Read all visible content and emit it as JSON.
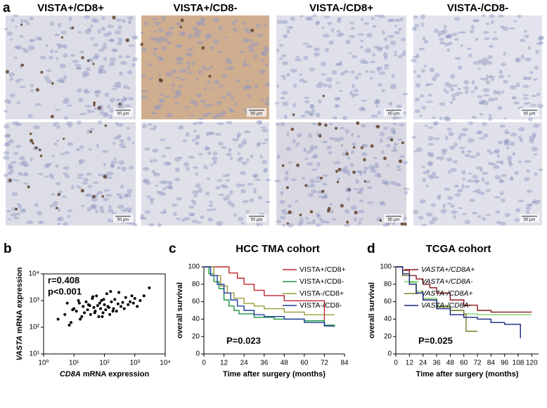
{
  "figure": {
    "label": "a",
    "columns": [
      "VISTA+/CD8+",
      "VISTA+/CD8-",
      "VISTA-/CD8+",
      "VISTA-/CD8-"
    ],
    "scale_bar": "50 μm"
  },
  "chart_data": [
    {
      "type": "scatter",
      "panel_label": "b",
      "xlabel": {
        "gene": "CD8A",
        "text": " mRNA expression"
      },
      "ylabel": {
        "gene": "VASTA",
        "text": " mRNA expression"
      },
      "annotations": [
        "r=0.408",
        "p<0.001"
      ],
      "log_x": true,
      "log_y": true,
      "color": "#000000",
      "xlim": [
        1,
        10000
      ],
      "ylim": [
        10,
        10000
      ],
      "xticks": [
        {
          "value": 1,
          "label": "10⁰"
        },
        {
          "value": 10,
          "label": "10¹"
        },
        {
          "value": 100,
          "label": "10²"
        },
        {
          "value": 1000,
          "label": "10³"
        },
        {
          "value": 10000,
          "label": "10⁴"
        }
      ],
      "yticks": [
        {
          "value": 10,
          "label": "10¹"
        },
        {
          "value": 100,
          "label": "10²"
        },
        {
          "value": 1000,
          "label": "10³"
        },
        {
          "value": 10000,
          "label": "10⁴"
        }
      ],
      "x": [
        3,
        5,
        8,
        10,
        12,
        15,
        18,
        20,
        22,
        25,
        28,
        30,
        35,
        40,
        45,
        50,
        55,
        60,
        65,
        70,
        75,
        80,
        90,
        100,
        110,
        120,
        130,
        150,
        170,
        200,
        220,
        250,
        280,
        300,
        350,
        400,
        450,
        500,
        600,
        700,
        800,
        900,
        1000,
        1200,
        1500,
        2000,
        3000,
        6,
        7,
        9,
        14,
        16,
        33,
        42,
        48,
        85,
        95,
        140,
        160,
        190
      ],
      "values": [
        200,
        300,
        150,
        500,
        400,
        800,
        250,
        600,
        350,
        900,
        450,
        700,
        300,
        1200,
        550,
        400,
        1500,
        650,
        250,
        800,
        500,
        1000,
        350,
        700,
        450,
        1800,
        600,
        300,
        900,
        500,
        1100,
        400,
        750,
        2000,
        600,
        850,
        500,
        1300,
        700,
        900,
        1500,
        800,
        1200,
        600,
        1000,
        1500,
        3000,
        800,
        120,
        450,
        1000,
        200,
        650,
        1400,
        350,
        250,
        1100,
        550,
        2200,
        400
      ]
    },
    {
      "type": "step",
      "panel_label": "c",
      "title": "HCC TMA cohort",
      "xlabel": "Time after surgery (months)",
      "ylabel": "overall survival",
      "annotations": [
        "P=0.023"
      ],
      "xlim": [
        0,
        84
      ],
      "ylim": [
        0,
        100
      ],
      "xticks": [
        0,
        12,
        24,
        36,
        48,
        60,
        72,
        84
      ],
      "yticks": [
        0,
        20,
        40,
        60,
        80,
        100
      ],
      "legend_italic": false,
      "series": [
        {
          "name": "VISTA+/CD8+",
          "color": "#c0272d",
          "x": [
            0,
            12,
            15,
            20,
            24,
            30,
            36,
            42,
            48,
            60,
            72,
            72,
            78
          ],
          "values": [
            100,
            100,
            93,
            87,
            80,
            73,
            67,
            67,
            61,
            61,
            61,
            32,
            32
          ]
        },
        {
          "name": "VISTA+/CD8-",
          "color": "#1a9641",
          "x": [
            0,
            3,
            6,
            9,
            12,
            15,
            18,
            21,
            24,
            30,
            36,
            42,
            48,
            60,
            72,
            78
          ],
          "values": [
            100,
            92,
            83,
            75,
            62,
            55,
            50,
            46,
            46,
            42,
            42,
            40,
            40,
            38,
            33,
            31
          ]
        },
        {
          "name": "VISTA-/CD8+",
          "color": "#9a9a3a",
          "x": [
            0,
            6,
            10,
            14,
            18,
            24,
            30,
            36,
            48,
            60,
            72,
            78
          ],
          "values": [
            100,
            90,
            78,
            70,
            64,
            58,
            55,
            52,
            48,
            45,
            45,
            45
          ]
        },
        {
          "name": "VISTA-/CD8-",
          "color": "#1f3fa0",
          "x": [
            0,
            4,
            8,
            12,
            16,
            20,
            24,
            30,
            36,
            48,
            60,
            72,
            78
          ],
          "values": [
            100,
            90,
            80,
            70,
            62,
            55,
            50,
            45,
            43,
            40,
            36,
            32,
            32
          ]
        }
      ]
    },
    {
      "type": "step",
      "panel_label": "d",
      "title": "TCGA cohort",
      "xlabel": "Time after surgery (months)",
      "ylabel": "overall survival",
      "annotations": [
        "P=0.025"
      ],
      "xlim": [
        0,
        126
      ],
      "ylim": [
        0,
        100
      ],
      "xticks": [
        0,
        12,
        24,
        36,
        48,
        60,
        72,
        84,
        96,
        108,
        120
      ],
      "yticks": [
        0,
        20,
        40,
        60,
        80,
        100
      ],
      "legend_italic": true,
      "series": [
        {
          "name": "VASTA+/CD8A+",
          "color": "#8b1a1a",
          "x": [
            0,
            6,
            12,
            18,
            24,
            30,
            36,
            48,
            60,
            72,
            84,
            96,
            108,
            120
          ],
          "values": [
            100,
            96,
            90,
            86,
            80,
            76,
            70,
            62,
            56,
            50,
            48,
            48,
            48,
            48
          ]
        },
        {
          "name": "VASTA+/CD8A-",
          "color": "#7fd36a",
          "x": [
            0,
            6,
            12,
            18,
            24,
            36,
            48,
            60,
            72,
            84,
            96,
            108,
            120
          ],
          "values": [
            100,
            92,
            82,
            72,
            64,
            55,
            50,
            46,
            45,
            45,
            45,
            45,
            45
          ]
        },
        {
          "name": "VASTA-/CD8A+",
          "color": "#7a7a2a",
          "x": [
            0,
            6,
            12,
            18,
            24,
            36,
            48,
            60,
            62,
            72
          ],
          "values": [
            100,
            90,
            80,
            70,
            62,
            54,
            50,
            46,
            26,
            26
          ]
        },
        {
          "name": "VASTA-/CD8A-",
          "color": "#1a237e",
          "x": [
            0,
            6,
            12,
            18,
            24,
            36,
            48,
            60,
            72,
            84,
            96,
            108,
            110
          ],
          "values": [
            100,
            92,
            80,
            70,
            62,
            52,
            45,
            42,
            40,
            36,
            34,
            34,
            18
          ]
        }
      ]
    }
  ]
}
